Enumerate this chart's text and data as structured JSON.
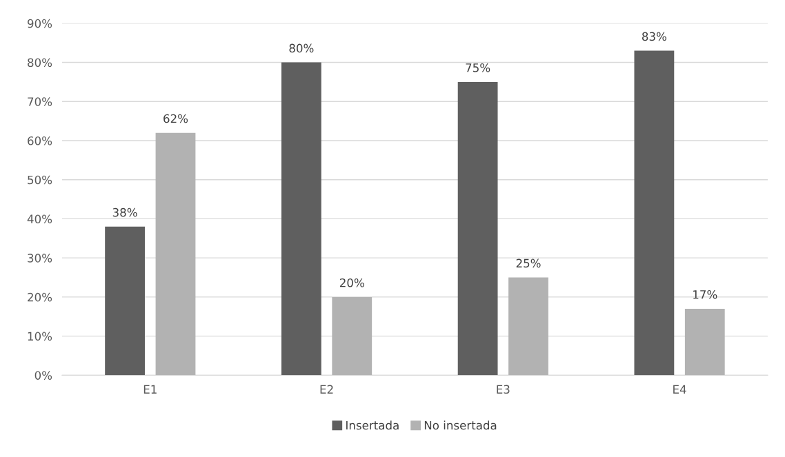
{
  "chart_data": {
    "type": "bar",
    "categories": [
      "E1",
      "E2",
      "E3",
      "E4"
    ],
    "series": [
      {
        "name": "Insertada",
        "color": "#5f5f5f",
        "values": [
          38,
          80,
          75,
          83
        ],
        "value_labels": [
          "38%",
          "80%",
          "75%",
          "83%"
        ]
      },
      {
        "name": "No insertada",
        "color": "#b2b2b2",
        "values": [
          62,
          20,
          25,
          17
        ],
        "value_labels": [
          "62%",
          "20%",
          "25%",
          "17%"
        ]
      }
    ],
    "ylim": [
      0,
      90
    ],
    "yticks": [
      {
        "value": 0,
        "label": "0%"
      },
      {
        "value": 10,
        "label": "10%"
      },
      {
        "value": 20,
        "label": "20%"
      },
      {
        "value": 30,
        "label": "30%"
      },
      {
        "value": 40,
        "label": "40%"
      },
      {
        "value": 50,
        "label": "50%"
      },
      {
        "value": 60,
        "label": "60%"
      },
      {
        "value": 70,
        "label": "70%"
      },
      {
        "value": 80,
        "label": "80%"
      },
      {
        "value": 90,
        "label": "90%"
      }
    ],
    "grid": "y",
    "legend": "bottom"
  }
}
